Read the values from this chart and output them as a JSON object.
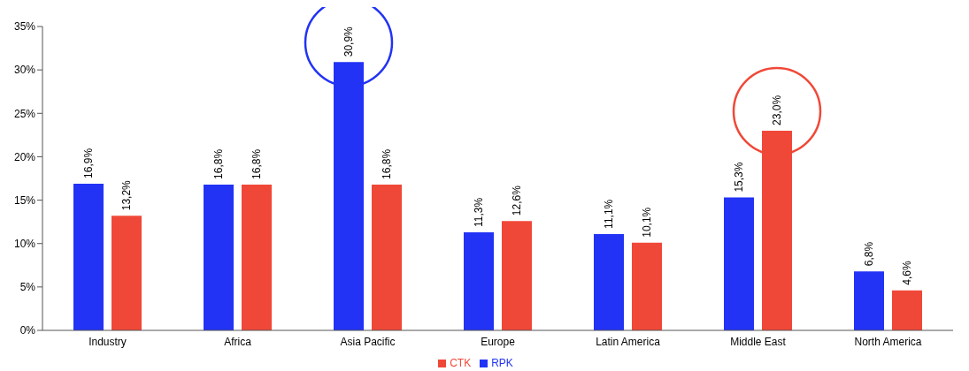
{
  "chart_data": {
    "type": "bar",
    "categories": [
      "Industry",
      "Africa",
      "Asia Pacific",
      "Europe",
      "Latin America",
      "Middle East",
      "North America"
    ],
    "series": [
      {
        "name": "RPK",
        "color": "#2233f5",
        "values": [
          16.9,
          16.8,
          30.9,
          11.3,
          11.1,
          15.3,
          6.8
        ],
        "value_labels": [
          "16,9%",
          "16,8%",
          "30,9%",
          "11,3%",
          "11,1%",
          "15,3%",
          "6,8%"
        ]
      },
      {
        "name": "CTK",
        "color": "#f04838",
        "values": [
          13.2,
          16.8,
          16.8,
          12.6,
          10.1,
          23.0,
          4.6
        ],
        "value_labels": [
          "13,2%",
          "16,8%",
          "16,8%",
          "12,6%",
          "10,1%",
          "23,0%",
          "4,6%"
        ]
      }
    ],
    "ylim": [
      0,
      35
    ],
    "yticks": [
      {
        "value": 0,
        "label": "0%"
      },
      {
        "value": 5,
        "label": "5%"
      },
      {
        "value": 10,
        "label": "10%"
      },
      {
        "value": 15,
        "label": "15%"
      },
      {
        "value": 20,
        "label": "20%"
      },
      {
        "value": 25,
        "label": "25%"
      },
      {
        "value": 30,
        "label": "30%"
      },
      {
        "value": 35,
        "label": "35%"
      }
    ],
    "grid": false,
    "legend": "bottom"
  }
}
